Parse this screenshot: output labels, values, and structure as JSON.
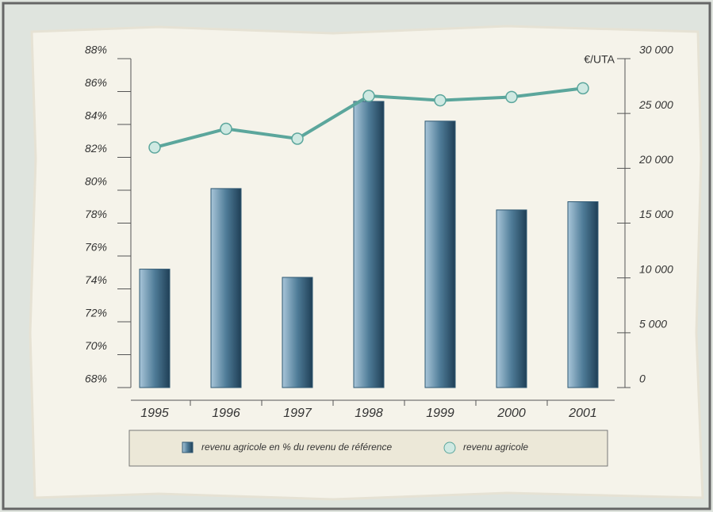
{
  "chart_data": {
    "type": "bar",
    "y2label": "€/UTA",
    "categories": [
      "1995",
      "1996",
      "1997",
      "1998",
      "1999",
      "2000",
      "2001"
    ],
    "series": [
      {
        "name": "revenu agricole en % du revenu de référence",
        "type": "bar",
        "color": "#2f5873",
        "values": [
          75.2,
          80.1,
          74.7,
          85.4,
          84.2,
          78.8,
          79.3
        ]
      },
      {
        "name": "revenu agricole",
        "type": "line",
        "axis": "y2",
        "color": "#5ba69c",
        "values": [
          21900,
          23600,
          22700,
          26600,
          26200,
          26500,
          27300
        ]
      }
    ],
    "ylim": [
      68,
      88
    ],
    "yticks": [
      {
        "value": 68,
        "label": "68%"
      },
      {
        "value": 70,
        "label": "70%"
      },
      {
        "value": 72,
        "label": "72%"
      },
      {
        "value": 74,
        "label": "74%"
      },
      {
        "value": 76,
        "label": "76%"
      },
      {
        "value": 78,
        "label": "78%"
      },
      {
        "value": 80,
        "label": "80%"
      },
      {
        "value": 82,
        "label": "82%"
      },
      {
        "value": 84,
        "label": "84%"
      },
      {
        "value": 86,
        "label": "86%"
      },
      {
        "value": 88,
        "label": "88%"
      }
    ],
    "y2lim": [
      0,
      30000
    ],
    "y2ticks": [
      0,
      {
        "value": 5000,
        "label": "5 000"
      },
      {
        "value": 10000,
        "label": "10 000"
      },
      {
        "value": 15000,
        "label": "15 000"
      },
      {
        "value": 20000,
        "label": "20 000"
      },
      {
        "value": 25000,
        "label": "25 000"
      },
      {
        "value": 30000,
        "label": "30 000"
      }
    ],
    "legend": "bottom",
    "grid": false
  }
}
